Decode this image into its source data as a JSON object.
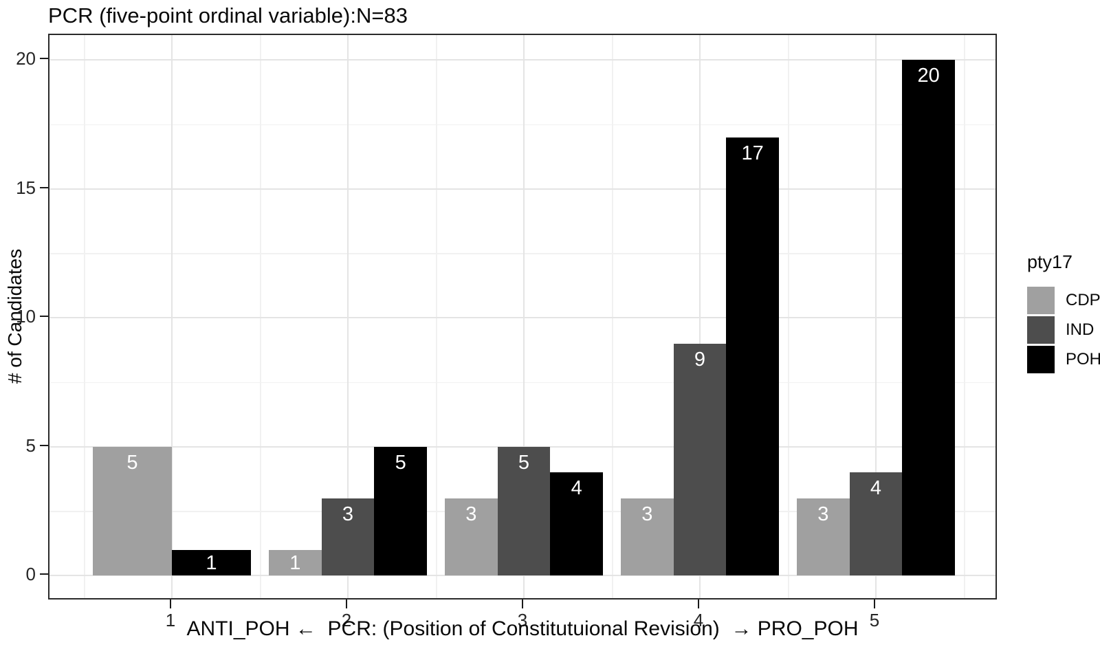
{
  "chart_data": {
    "type": "bar",
    "title": "PCR (five-point ordinal variable):N=83",
    "xlabel": "ANTI_POH ←  PCR: (Position of Constitutuional Revision)  → PRO_POH",
    "ylabel": "# of Candidates",
    "categories": [
      "1",
      "2",
      "3",
      "4",
      "5"
    ],
    "series": [
      {
        "name": "CDP",
        "color": "#a0a0a0",
        "values": [
          5,
          1,
          3,
          3,
          3
        ]
      },
      {
        "name": "IND",
        "color": "#4d4d4d",
        "values": [
          null,
          3,
          5,
          9,
          4
        ]
      },
      {
        "name": "POH",
        "color": "#000000",
        "values": [
          1,
          5,
          4,
          17,
          20
        ]
      }
    ],
    "bar_label_color": "#ffffff",
    "yticks": [
      0,
      5,
      10,
      15,
      20
    ],
    "yminor": [
      2.5,
      7.5,
      12.5,
      17.5
    ],
    "ylim": [
      0,
      20
    ],
    "legend": {
      "title": "pty17",
      "position": "right",
      "entries": [
        {
          "label": "CDP",
          "color": "#a0a0a0"
        },
        {
          "label": "IND",
          "color": "#4d4d4d"
        },
        {
          "label": "POH",
          "color": "#000000"
        }
      ]
    },
    "colors": {
      "panel_border": "#2a2a2a",
      "grid_major": "#e4e4e4",
      "grid_minor": "#f1f1f1",
      "text": "#1a1a1a",
      "background": "#ffffff"
    }
  }
}
